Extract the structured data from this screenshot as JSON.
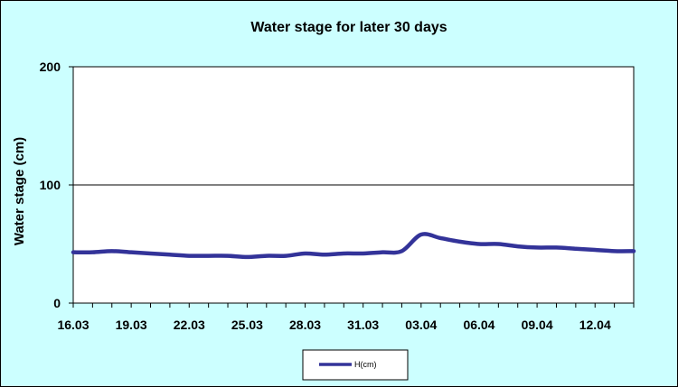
{
  "chart_data": {
    "type": "line",
    "title": "Water stage for later 30 days",
    "ylabel": "Water stage (cm)",
    "xlabel": "",
    "ylim": [
      0,
      200
    ],
    "y_ticks": [
      0,
      100,
      200
    ],
    "x_tick_labels": [
      "16.03",
      "19.03",
      "22.03",
      "25.03",
      "28.03",
      "31.03",
      "03.04",
      "06.04",
      "09.04",
      "12.04"
    ],
    "grid": "horizontal",
    "legend_placement": "bottom",
    "series": [
      {
        "name": "H(cm)",
        "color": "#333399",
        "x": [
          "16.03",
          "17.03",
          "18.03",
          "19.03",
          "20.03",
          "21.03",
          "22.03",
          "23.03",
          "24.03",
          "25.03",
          "26.03",
          "27.03",
          "28.03",
          "29.03",
          "30.03",
          "31.03",
          "01.04",
          "02.04",
          "03.04",
          "04.04",
          "05.04",
          "06.04",
          "07.04",
          "08.04",
          "09.04",
          "10.04",
          "11.04",
          "12.04",
          "13.04",
          "14.04"
        ],
        "values": [
          43,
          43,
          44,
          43,
          42,
          41,
          40,
          40,
          40,
          39,
          40,
          40,
          42,
          41,
          42,
          42,
          43,
          44,
          58,
          55,
          52,
          50,
          50,
          48,
          47,
          47,
          46,
          45,
          44,
          44
        ]
      }
    ]
  }
}
